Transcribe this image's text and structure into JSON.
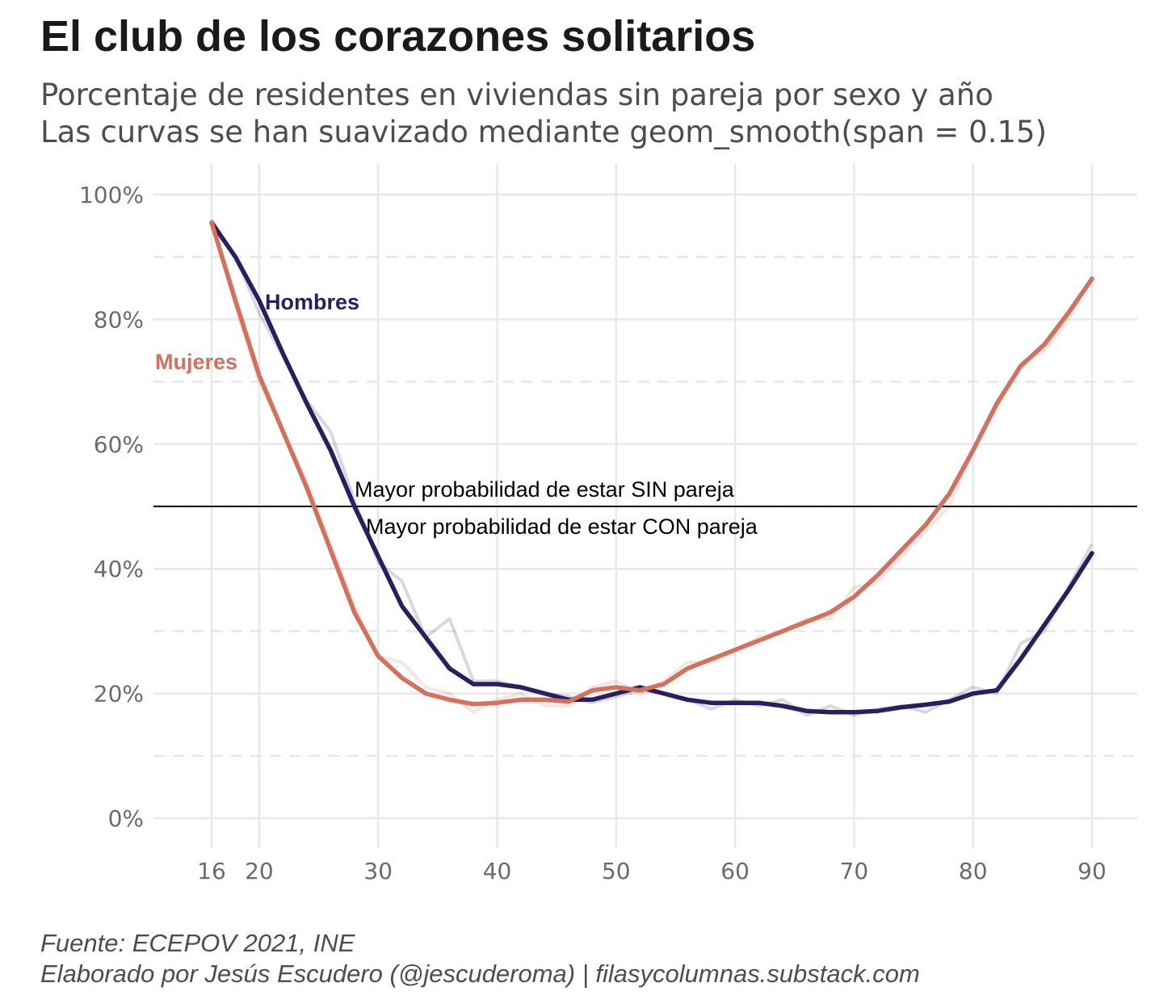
{
  "title": "El club de los corazones solitarios",
  "subtitle_line1": "Porcentaje de residentes en viviendas sin pareja por sexo y año",
  "subtitle_line2": "Las curvas se han suavizado mediante geom_smooth(span = 0.15)",
  "caption_line1": "Fuente: ECEPOV 2021, INE",
  "caption_line2": "Elaborado por Jesús Escudero (@jescuderoma) | filasycolumnas.substack.com",
  "chart_data": {
    "type": "line",
    "x_ticks": [
      16,
      20,
      30,
      40,
      50,
      60,
      70,
      80,
      90
    ],
    "y_ticks": [
      0,
      0.2,
      0.4,
      0.6,
      0.8,
      1.0
    ],
    "y_tick_labels": [
      "0%",
      "20%",
      "40%",
      "60%",
      "80%",
      "100%"
    ],
    "xlim": [
      11,
      94
    ],
    "ylim": [
      -0.05,
      1.05
    ],
    "grid": true,
    "reference_line": {
      "y": 0.5,
      "label_above": "Mayor probabilidad de estar SIN pareja",
      "label_below": "Mayor probabilidad de estar CON pareja"
    },
    "series": [
      {
        "name": "Hombres",
        "color": "#2a1f5e",
        "x": [
          16,
          18,
          20,
          22,
          24,
          26,
          28,
          30,
          32,
          34,
          36,
          38,
          40,
          42,
          44,
          46,
          48,
          50,
          52,
          54,
          56,
          58,
          60,
          62,
          64,
          66,
          68,
          70,
          72,
          74,
          76,
          78,
          80,
          82,
          84,
          86,
          88,
          90
        ],
        "smoothed": [
          0.955,
          0.9,
          0.83,
          0.745,
          0.665,
          0.59,
          0.5,
          0.42,
          0.34,
          0.29,
          0.24,
          0.215,
          0.215,
          0.21,
          0.2,
          0.19,
          0.19,
          0.2,
          0.21,
          0.2,
          0.19,
          0.185,
          0.185,
          0.185,
          0.18,
          0.172,
          0.17,
          0.17,
          0.172,
          0.178,
          0.182,
          0.187,
          0.2,
          0.205,
          0.255,
          0.31,
          0.365,
          0.425
        ],
        "raw": [
          0.96,
          0.9,
          0.81,
          0.74,
          0.67,
          0.62,
          0.51,
          0.41,
          0.38,
          0.29,
          0.32,
          0.22,
          0.22,
          0.21,
          0.2,
          0.195,
          0.185,
          0.195,
          0.205,
          0.2,
          0.19,
          0.175,
          0.19,
          0.18,
          0.19,
          0.165,
          0.18,
          0.165,
          0.175,
          0.18,
          0.17,
          0.19,
          0.21,
          0.2,
          0.28,
          0.3,
          0.37,
          0.44
        ]
      },
      {
        "name": "Mujeres",
        "color": "#d4705c",
        "x": [
          16,
          18,
          20,
          22,
          24,
          26,
          28,
          30,
          32,
          34,
          36,
          38,
          40,
          42,
          44,
          46,
          48,
          50,
          52,
          54,
          56,
          58,
          60,
          62,
          64,
          66,
          68,
          70,
          72,
          74,
          76,
          78,
          80,
          82,
          84,
          86,
          88,
          90
        ],
        "smoothed": [
          0.955,
          0.83,
          0.71,
          0.62,
          0.53,
          0.43,
          0.33,
          0.26,
          0.225,
          0.2,
          0.19,
          0.183,
          0.185,
          0.19,
          0.19,
          0.187,
          0.205,
          0.21,
          0.205,
          0.215,
          0.24,
          0.255,
          0.27,
          0.285,
          0.3,
          0.315,
          0.33,
          0.355,
          0.39,
          0.43,
          0.47,
          0.52,
          0.59,
          0.665,
          0.725,
          0.76,
          0.81,
          0.865
        ],
        "raw": [
          0.96,
          0.82,
          0.7,
          0.62,
          0.54,
          0.44,
          0.34,
          0.26,
          0.25,
          0.21,
          0.2,
          0.17,
          0.19,
          0.2,
          0.18,
          0.18,
          0.21,
          0.22,
          0.2,
          0.22,
          0.25,
          0.25,
          0.27,
          0.29,
          0.3,
          0.32,
          0.32,
          0.37,
          0.38,
          0.42,
          0.46,
          0.5,
          0.59,
          0.66,
          0.73,
          0.75,
          0.8,
          0.87
        ]
      }
    ]
  }
}
